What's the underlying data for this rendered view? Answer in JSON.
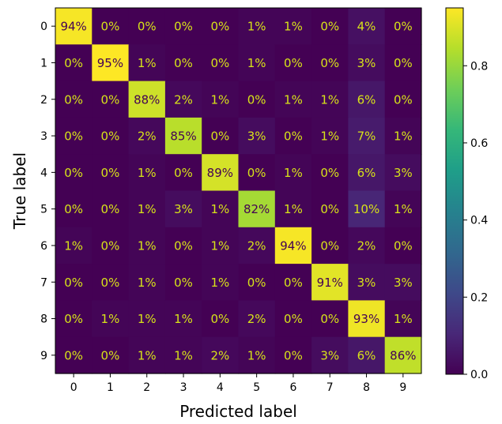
{
  "chart_data": {
    "type": "heatmap",
    "title": "",
    "xlabel": "Predicted label",
    "ylabel": "True label",
    "x_tick_labels": [
      "0",
      "1",
      "2",
      "3",
      "4",
      "5",
      "6",
      "7",
      "8",
      "9"
    ],
    "y_tick_labels": [
      "0",
      "1",
      "2",
      "3",
      "4",
      "5",
      "6",
      "7",
      "8",
      "9"
    ],
    "values": [
      [
        0.94,
        0.0,
        0.0,
        0.0,
        0.0,
        0.01,
        0.01,
        0.0,
        0.04,
        0.0
      ],
      [
        0.0,
        0.95,
        0.01,
        0.0,
        0.0,
        0.01,
        0.0,
        0.0,
        0.03,
        0.0
      ],
      [
        0.0,
        0.0,
        0.88,
        0.02,
        0.01,
        0.0,
        0.01,
        0.01,
        0.06,
        0.0
      ],
      [
        0.0,
        0.0,
        0.02,
        0.85,
        0.0,
        0.03,
        0.0,
        0.01,
        0.07,
        0.01
      ],
      [
        0.0,
        0.0,
        0.01,
        0.0,
        0.89,
        0.0,
        0.01,
        0.0,
        0.06,
        0.03
      ],
      [
        0.0,
        0.0,
        0.01,
        0.03,
        0.01,
        0.82,
        0.01,
        0.0,
        0.1,
        0.01
      ],
      [
        0.01,
        0.0,
        0.01,
        0.0,
        0.01,
        0.02,
        0.94,
        0.0,
        0.02,
        0.0
      ],
      [
        0.0,
        0.0,
        0.01,
        0.0,
        0.01,
        0.0,
        0.0,
        0.91,
        0.03,
        0.03
      ],
      [
        0.0,
        0.01,
        0.01,
        0.01,
        0.0,
        0.02,
        0.0,
        0.0,
        0.93,
        0.01
      ],
      [
        0.0,
        0.0,
        0.01,
        0.01,
        0.02,
        0.01,
        0.0,
        0.03,
        0.06,
        0.86
      ]
    ],
    "cell_labels": [
      [
        "94%",
        "0%",
        "0%",
        "0%",
        "0%",
        "1%",
        "1%",
        "0%",
        "4%",
        "0%"
      ],
      [
        "0%",
        "95%",
        "1%",
        "0%",
        "0%",
        "1%",
        "0%",
        "0%",
        "3%",
        "0%"
      ],
      [
        "0%",
        "0%",
        "88%",
        "2%",
        "1%",
        "0%",
        "1%",
        "1%",
        "6%",
        "0%"
      ],
      [
        "0%",
        "0%",
        "2%",
        "85%",
        "0%",
        "3%",
        "0%",
        "1%",
        "7%",
        "1%"
      ],
      [
        "0%",
        "0%",
        "1%",
        "0%",
        "89%",
        "0%",
        "1%",
        "0%",
        "6%",
        "3%"
      ],
      [
        "0%",
        "0%",
        "1%",
        "3%",
        "1%",
        "82%",
        "1%",
        "0%",
        "10%",
        "1%"
      ],
      [
        "1%",
        "0%",
        "1%",
        "0%",
        "1%",
        "2%",
        "94%",
        "0%",
        "2%",
        "0%"
      ],
      [
        "0%",
        "0%",
        "1%",
        "0%",
        "1%",
        "0%",
        "0%",
        "91%",
        "3%",
        "3%"
      ],
      [
        "0%",
        "1%",
        "1%",
        "1%",
        "0%",
        "2%",
        "0%",
        "0%",
        "93%",
        "1%"
      ],
      [
        "0%",
        "0%",
        "1%",
        "1%",
        "2%",
        "1%",
        "0%",
        "3%",
        "6%",
        "86%"
      ]
    ],
    "colormap": "viridis",
    "vmin": 0.0,
    "vmax": 0.95,
    "colorbar": {
      "ticks": [
        0.0,
        0.2,
        0.4,
        0.6,
        0.8
      ],
      "tick_labels": [
        "0.0",
        "0.2",
        "0.4",
        "0.6",
        "0.8"
      ]
    },
    "colors": {
      "text_on_dark": "#d7e219",
      "text_on_light": "#440154"
    }
  }
}
